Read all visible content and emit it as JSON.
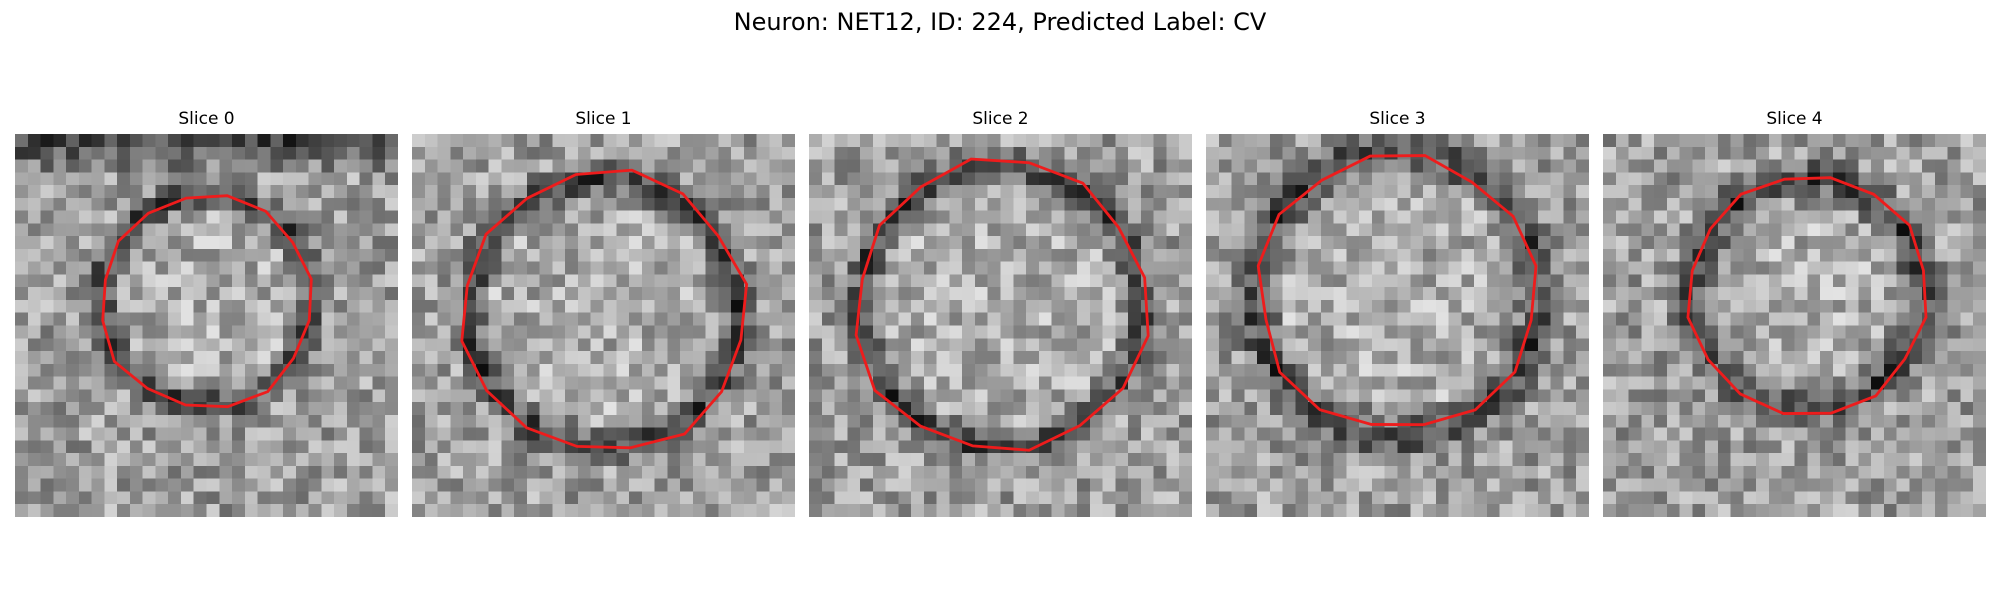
{
  "figure": {
    "title": "Neuron: NET12, ID: 224, Predicted Label: CV"
  },
  "panels": [
    {
      "title": "Slice 0"
    },
    {
      "title": "Slice 1"
    },
    {
      "title": "Slice 2"
    },
    {
      "title": "Slice 3"
    },
    {
      "title": "Slice 4"
    }
  ],
  "colors": {
    "contour": "#ee1c1c",
    "background": "#ffffff"
  }
}
